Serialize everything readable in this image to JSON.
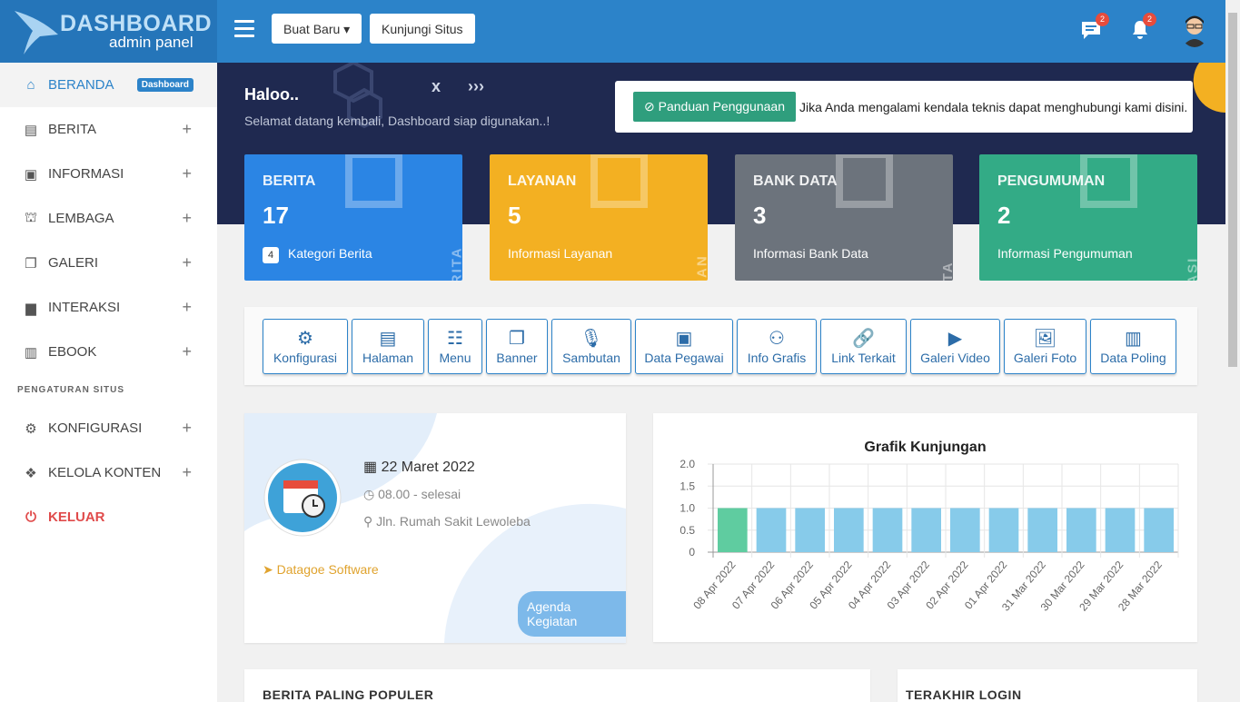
{
  "logo": {
    "title": "DASHBOARD",
    "subtitle": "admin panel"
  },
  "header": {
    "new_label": "Buat Baru",
    "visit_label": "Kunjungi Situs",
    "messages_count": "2",
    "notifications_count": "2"
  },
  "sidebar": {
    "items": [
      {
        "label": "BERANDA",
        "icon": "home",
        "badge": "Dashboard"
      },
      {
        "label": "BERITA",
        "icon": "newspaper"
      },
      {
        "label": "INFORMASI",
        "icon": "inbox"
      },
      {
        "label": "LEMBAGA",
        "icon": "landmark"
      },
      {
        "label": "GALERI",
        "icon": "images"
      },
      {
        "label": "INTERAKSI",
        "icon": "comments"
      },
      {
        "label": "EBOOK",
        "icon": "book-open"
      }
    ],
    "section": "PENGATURAN SITUS",
    "settings": [
      {
        "label": "KONFIGURASI",
        "icon": "cogs"
      },
      {
        "label": "KELOLA KONTEN",
        "icon": "dropbox"
      }
    ],
    "logout": "KELUAR"
  },
  "banner": {
    "greeting": "Haloo..",
    "welcome": "Selamat datang kembali, Dashboard siap digunakan..!",
    "guide_button": "Panduan Penggunaan",
    "notice": "Jika Anda mengalami kendala teknis dapat menghubungi kami disini."
  },
  "stats": [
    {
      "label": "BERITA",
      "value": "17",
      "badge": "4",
      "sub": "Kategori Berita",
      "vertical": "BERITA",
      "color": "#2b85e4"
    },
    {
      "label": "LAYANAN",
      "value": "5",
      "sub": "Informasi Layanan",
      "vertical": "LAYANAN",
      "color": "#f3b022"
    },
    {
      "label": "BANK DATA",
      "value": "3",
      "sub": "Informasi Bank Data",
      "vertical": "BANKDATA",
      "color": "#6c737c"
    },
    {
      "label": "PENGUMUMAN",
      "value": "2",
      "sub": "Informasi Pengumuman",
      "vertical": "INFOMASI",
      "color": "#33ab86"
    }
  ],
  "shortcuts": [
    {
      "label": "Konfigurasi",
      "icon": "⚙"
    },
    {
      "label": "Halaman",
      "icon": "▤"
    },
    {
      "label": "Menu",
      "icon": "☷"
    },
    {
      "label": "Banner",
      "icon": "❐"
    },
    {
      "label": "Sambutan",
      "icon": "🎙"
    },
    {
      "label": "Data Pegawai",
      "icon": "▣"
    },
    {
      "label": "Info Grafis",
      "icon": "⚇"
    },
    {
      "label": "Link Terkait",
      "icon": "🔗"
    },
    {
      "label": "Galeri Video",
      "icon": "▶"
    },
    {
      "label": "Galeri Foto",
      "icon": "🖼"
    },
    {
      "label": "Data Poling",
      "icon": "▥"
    }
  ],
  "event": {
    "date": "22 Maret 2022",
    "time": "08.00 - selesai",
    "location": "Jln. Rumah Sakit Lewoleba",
    "organizer": "Datagoe Software",
    "agenda_button": "Agenda Kegiatan"
  },
  "chart_data": {
    "type": "bar",
    "title": "Grafik Kunjungan",
    "categories": [
      "08 Apr 2022",
      "07 Apr 2022",
      "06 Apr 2022",
      "05 Apr 2022",
      "04 Apr 2022",
      "03 Apr 2022",
      "02 Apr 2022",
      "01 Apr 2022",
      "31 Mar 2022",
      "30 Mar 2022",
      "29 Mar 2022",
      "28 Mar 2022"
    ],
    "values": [
      1,
      1,
      1,
      1,
      1,
      1,
      1,
      1,
      1,
      1,
      1,
      1
    ],
    "ylim": [
      0,
      2
    ],
    "yticks": [
      "0",
      "0.5",
      "1.0",
      "1.5",
      "2.0"
    ],
    "grid": true,
    "colors": {
      "first": "#5fcca0",
      "rest": "#87cbea"
    }
  },
  "bottom": {
    "popular_title": "BERITA PALING POPULER",
    "login_title": "TERAKHIR LOGIN"
  }
}
